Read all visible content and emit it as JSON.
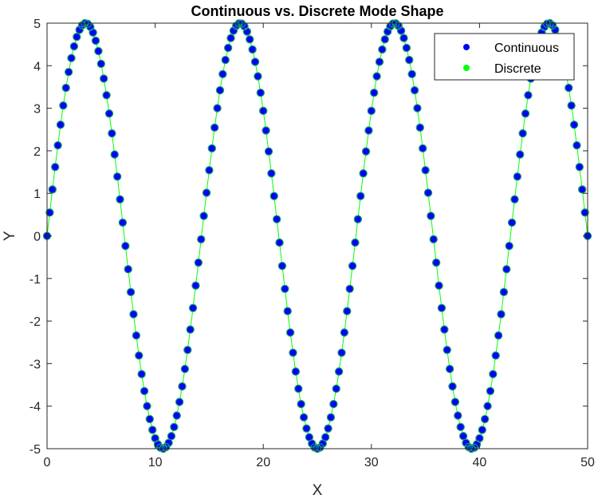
{
  "chart_data": {
    "type": "scatter",
    "title": "Continuous vs. Discrete Mode Shape",
    "xlabel": "X",
    "ylabel": "Y",
    "xlim": [
      0,
      50
    ],
    "ylim": [
      -5,
      5
    ],
    "xticks": [
      0,
      10,
      20,
      30,
      40,
      50
    ],
    "yticks": [
      -5,
      -4,
      -3,
      -2,
      -1,
      0,
      1,
      2,
      3,
      4,
      5
    ],
    "grid": false,
    "legend_position": "top-right",
    "function": "y = 5 * sin(7 * pi * x / 50)",
    "amplitude": 5,
    "half_waves": 7,
    "x_range": [
      0,
      50
    ],
    "series": [
      {
        "name": "Continuous",
        "marker": "circle",
        "color": "#0000ff",
        "point_count": 201
      },
      {
        "name": "Discrete",
        "marker": "circle",
        "color": "#00ff00",
        "line": true,
        "point_count": 201
      }
    ]
  }
}
